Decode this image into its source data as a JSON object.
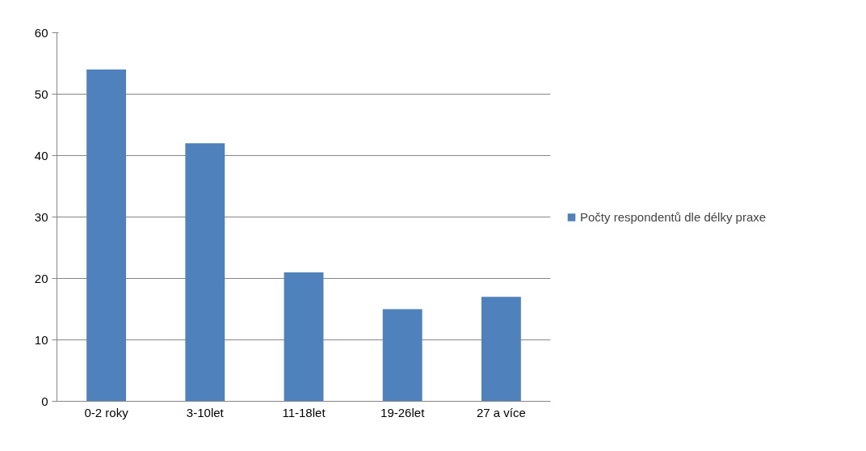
{
  "chart_data": {
    "type": "bar",
    "categories": [
      "0-2 roky",
      "3-10let",
      "11-18let",
      "19-26let",
      "27 a více"
    ],
    "series": [
      {
        "name": "Počty respondentů dle délky praxe",
        "color": "#4f81bd",
        "values": [
          54,
          42,
          21,
          15,
          17
        ]
      }
    ],
    "ylim": [
      0,
      60
    ],
    "yticks": [
      0,
      10,
      20,
      30,
      40,
      50,
      60
    ],
    "grid": "y",
    "legend": "right"
  }
}
